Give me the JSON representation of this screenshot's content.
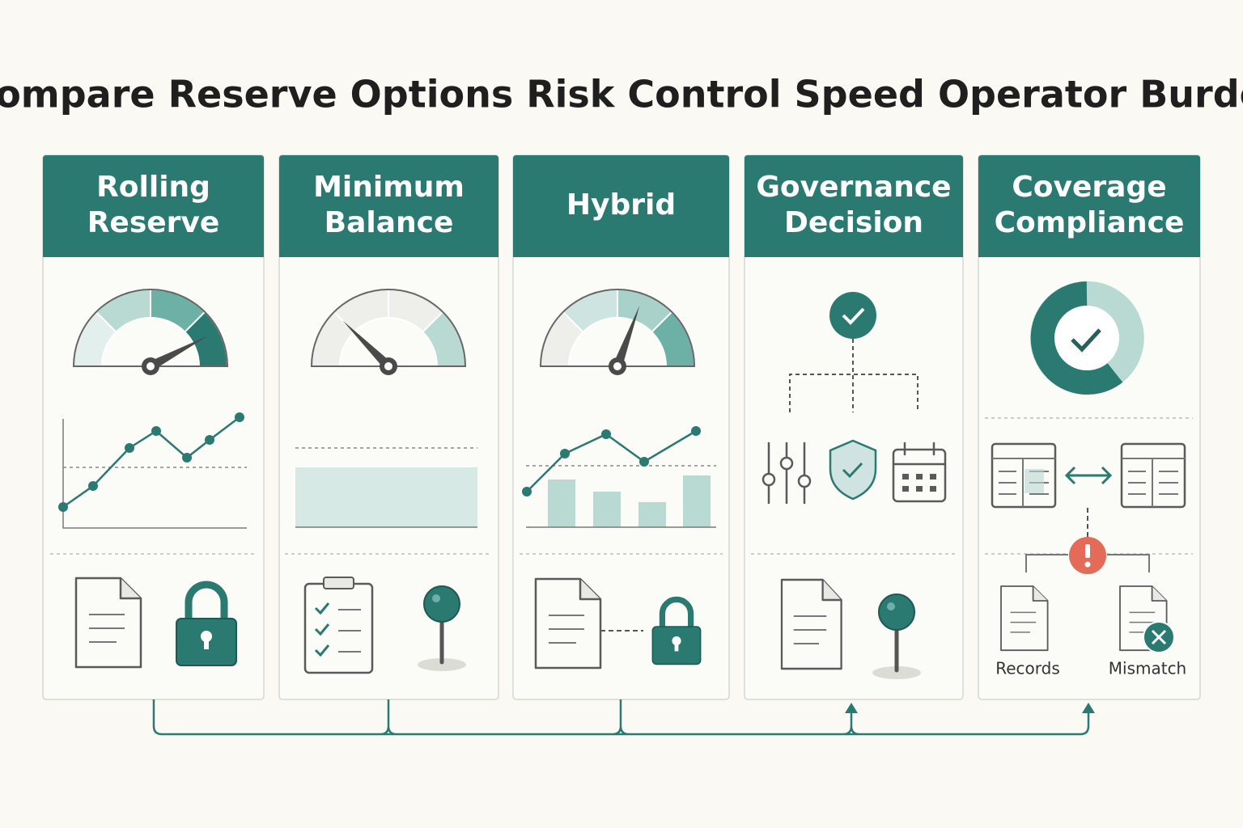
{
  "title": "Compare Reserve Options Risk Control Speed Operator Burden",
  "columns": [
    {
      "header": [
        "Rolling",
        "Reserve"
      ]
    },
    {
      "header": [
        "Minimum",
        "Balance"
      ]
    },
    {
      "header": [
        "Hybrid"
      ]
    },
    {
      "header": [
        "Governance",
        "Decision"
      ]
    },
    {
      "header": [
        "Coverage",
        "Compliance"
      ]
    }
  ],
  "labels": {
    "records": "Records",
    "mismatch": "Mismatch"
  }
}
